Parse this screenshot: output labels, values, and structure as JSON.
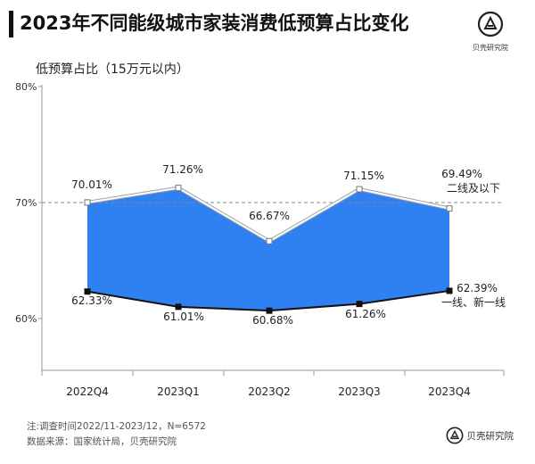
{
  "header": {
    "title": "2023年不同能级城市家装消费低预算占比变化",
    "logo_text": "贝壳研究院",
    "logo_icon": "beike-logo-icon"
  },
  "chart_data": {
    "type": "area",
    "title": "2023年不同能级城市家装消费低预算占比变化",
    "ylabel": "低预算占比（15万元以内）",
    "categories": [
      "2022Q4",
      "2023Q1",
      "2023Q2",
      "2023Q3",
      "2023Q4"
    ],
    "y_ticks": [
      "80%",
      "70%",
      "60%"
    ],
    "ylim": [
      55,
      80
    ],
    "reference_line": 70,
    "series": [
      {
        "name": "二线及以下",
        "values": [
          70.01,
          71.26,
          66.67,
          71.15,
          69.49
        ],
        "labels": [
          "70.01%",
          "71.26%",
          "66.67%",
          "71.15%",
          "69.49%"
        ]
      },
      {
        "name": "一线、新一线",
        "values": [
          62.33,
          61.01,
          60.68,
          61.26,
          62.39
        ],
        "labels": [
          "62.33%",
          "61.01%",
          "60.68%",
          "61.26%",
          "62.39%"
        ]
      }
    ],
    "fill_color": "#2f80f0",
    "upper_line_color": "#ffffff",
    "lower_line_color": "#111111",
    "grid": false,
    "legend": "inline-right"
  },
  "notes": {
    "survey": "注:调查时间2022/11-2023/12，N=6572",
    "source": "数据来源：国家统计局，贝壳研究院"
  }
}
